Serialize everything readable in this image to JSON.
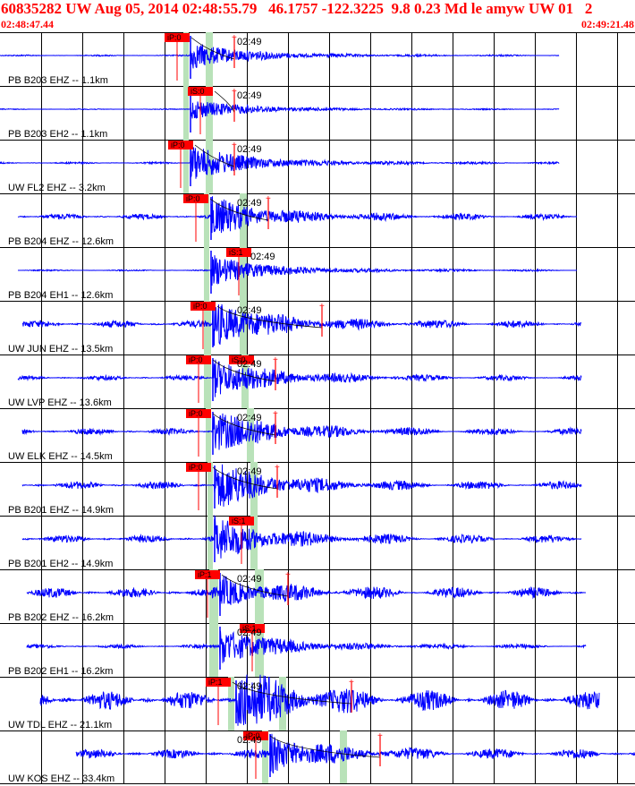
{
  "header": {
    "title": "60835282 UW Aug 05, 2014 02:48:55.79   46.1757 -122.3225  9.8 0.23 Md le amyw UW 01   2",
    "time_start": "02:48:47.44",
    "time_end": "02:49:21.48"
  },
  "colors": {
    "waveform": "#0000ff",
    "pick": "#ff0000",
    "window": "#b9e2b9",
    "text": "#000000",
    "grid": "#000000"
  },
  "traces": [
    {
      "label": "PB B203 EHZ -- 1.1km",
      "minute": "02:49",
      "pick": "iP:0",
      "amp": 0.45,
      "noise": 0.03
    },
    {
      "label": "PB B203 EH2 -- 1.1km",
      "minute": "02:49",
      "pick": "iS:0",
      "amp": 0.35,
      "noise": 0.02
    },
    {
      "label": "UW FL2 EHZ -- 3.2km",
      "minute": "02:49",
      "pick": "iP:0",
      "amp": 0.6,
      "noise": 0.04
    },
    {
      "label": "PB B204 EHZ -- 12.6km",
      "minute": "02:49",
      "pick": "iP:0",
      "amp": 0.6,
      "noise": 0.12
    },
    {
      "label": "PB B204 EH1 -- 12.6km",
      "minute": "02:49",
      "pick": "iS:1",
      "amp": 0.5,
      "noise": 0.03
    },
    {
      "label": "UW JUN EHZ -- 13.5km",
      "minute": "02:49",
      "pick": "iP:0",
      "amp": 0.75,
      "noise": 0.15
    },
    {
      "label": "UW LVP EHZ -- 13.6km",
      "minute": "02:49",
      "pick": "iP:0",
      "pick2": "iS:0",
      "amp": 0.65,
      "noise": 0.1
    },
    {
      "label": "UW ELK EHZ -- 14.5km",
      "minute": "02:49",
      "pick": "iP:0",
      "amp": 0.7,
      "noise": 0.14
    },
    {
      "label": "PB B201 EHZ -- 14.9km",
      "minute": "02:49",
      "pick": "iP:0",
      "amp": 0.75,
      "noise": 0.16
    },
    {
      "label": "PB B201 EH2 -- 14.9km",
      "minute": "",
      "pick": "iS:1",
      "amp": 0.65,
      "noise": 0.16
    },
    {
      "label": "PB B202 EHZ -- 16.2km",
      "minute": "02:49",
      "pick": "iP:1",
      "amp": 0.45,
      "noise": 0.22
    },
    {
      "label": "PB B202 EH1 -- 16.2km",
      "minute": "02:49",
      "pick": "iS:1",
      "amp": 0.6,
      "noise": 0.08
    },
    {
      "label": "UW TDL EHZ -- 21.1km",
      "minute": "02:49",
      "pick": "iP:1",
      "amp": 0.9,
      "noise": 0.4
    },
    {
      "label": "UW KOS EHZ -- 33.4km",
      "minute": "02:49",
      "pick": "iP:0",
      "amp": 0.6,
      "noise": 0.2
    }
  ]
}
